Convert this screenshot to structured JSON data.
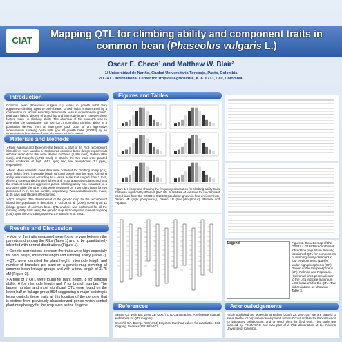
{
  "header": {
    "title_part1": "Mapping QTL for climbing ability and component traits in common bean (",
    "title_species": "Phaseolus vulgaris",
    "title_part2": " L.)",
    "authors": "Oscar E. Checa¹ and Matthew W. Blair²",
    "affiliations": [
      "1/ Universidad de Nariño, Ciudad Universitaria Torobajo, Pasto, Colombia",
      "2/ CIAT - International Center for Tropical Agriculture, A. A. 6713, Cali, Colombia."
    ],
    "logo": "CIAT"
  },
  "introduction": {
    "heading": "Introduction",
    "text": "Common bean (Phaseolus vulgaris L.) varies in growth habit from aggressive climbing types to bush beans. Growth habit is determined by a combination of factors including determinate versus indeterminate growth, total plant height, degree of branching and internode length. Together these factors make up climbing ability. The objective of this research was to determine the quantitative trait loci (QTL) controlling climbing ability in a population derived from an inter-gene pool cross of an aggressive indeterminate climbing bean with type IV growth habit (G2333) by an indeterminate bush bean of type IIb growth habit (G19839)."
  },
  "methods": {
    "heading": "Materials and Methods",
    "paragraphs": [
      "➢Plant Material and Experimental Design: A total of 84 F5:6 recombinant inbred lines were used in a randomized complete block design experiments with two replications that were planted in Darién (1,480 masl), Palmira (965 masl), and Popayán (1,730 masl). In Darién, the two trials were planted under conditions of high (64.3 ppm) and low phosphorus (7.7 ppm), respectively.",
      "➢Field Measurements: Field data were collected for climbing ability (CA), plant height (PH), internode length (IL) and branch number (BN). Climbing ability was measured according to a visual scale that ranged from 1 to 9, where 1 corresponded to the highest and most aggressive plants and 9 to the smallest and least aggressive plants. Climbing ability was evaluated on a plot basis while the other traits were measured on a per plant basis for two plants each in m, cm and number, respectively. Two evaluations were made, at 45 days and 75 days after planting.",
      "➢QTL analysis: The development of the genetic map for the recombinant inbred line population is described in Ochoa et al. (2006) covering all 11 linkage groups of common bean. QTL analysis was performed for all the climbing ability traits using the genetic map and composite interval mapping (CIM) option in QTL cartographer v. 2.0 (Basten et al. 2001)."
    ]
  },
  "results": {
    "heading": "Results and Discussion",
    "paragraphs": [
      "➢Most of the traits measured were found to vary between the parents and among the RILs (Table 1) and to be quantitatively inherited with normal distributions (Figure 1).",
      "➢Genetic correlations between the traits were high especially for plant height, internode length and climbing ability (Table 2).",
      "➢QTL were identified for plant height, internode length and number of branches per plant on a genetic map covering all common bean linkage groups and with a total length of 1175 cM (Figure 2).",
      "➢A total of 7 QTL were found for plant height, 8 for climbing ability, 6 for internode length and 7 for branch number. The largest number and most significant QTL were found on the lower half of linkage group B04 suggesting a major pleiotropic locus controls these traits at this location of the genome that is distinct from previously characterized genes which control plant morphology for the crop such as the fin gene."
    ]
  },
  "figures": {
    "heading": "Figures and Tables",
    "figure1_caption": "Figure 1. Histograms showing the frequency distribution for climbing ability traits that were significantly different (P<0.05) in analysis of variance for recombinant inbred lines from the G2333 x G19839 population grown in four environments, Darién HP (high phosphorus), Darién LP (low phosphorus), Palmira and Popayán.",
    "figure2_caption": "Figure 2. Genetic map of the G2333 x G19839 recombinant inbred line population showing location of QTL for components of climbing ability detected in four environments (Darién under high phosphorus (HP), Darién under low phosphorus (LP), Palmira and Popayán). Horizontal lines perpendicular to the LGs indicate maximum LOD locations for the QTL. Trait abbreviations as shown in Table 3.",
    "legend": "Legend"
  },
  "references": {
    "heading": "References",
    "items": [
      "Basten CJ, Weir BS, Zeng ZB (2001) QTL Cartographer: A reference manual and tutorial for QTL mapping.",
      "Churchill GA, Doerge RW (1994) Empirical threshold values for quantitative trait mapping. Genetics 138: 963-971."
    ]
  },
  "acknowledgements": {
    "heading": "Acknowledgements",
    "text": "Article published as: Molecular Breeding (2006) 22: 201-215. We are grateful to Steve Beebe for population development, to Ivan Ochoa and Hector Fabio Buendia for laboratory collaboration, and to Yercil Viera for field work. This study was financed by FONTAGRO and was part of a PhD dissertation at the National University of Colombia."
  }
}
